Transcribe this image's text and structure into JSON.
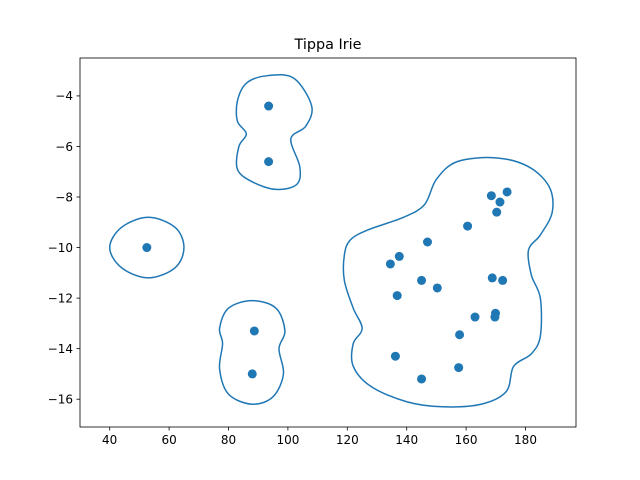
{
  "chart_data": {
    "type": "scatter",
    "title": "Tippa Irie",
    "xlabel": "",
    "ylabel": "",
    "xlim": [
      30,
      197
    ],
    "ylim": [
      -17.1,
      -2.5
    ],
    "xticks": [
      40,
      60,
      80,
      100,
      120,
      140,
      160,
      180
    ],
    "yticks": [
      -4,
      -6,
      -8,
      -10,
      -12,
      -14,
      -16
    ],
    "grid": false,
    "colors": {
      "series": "#1f77b4",
      "axes": "#000000"
    },
    "points": [
      [
        93.5,
        -4.4
      ],
      [
        93.5,
        -6.6
      ],
      [
        52.5,
        -10.0
      ],
      [
        88.7,
        -13.3
      ],
      [
        88.0,
        -15.0
      ],
      [
        168.5,
        -7.95
      ],
      [
        173.8,
        -7.8
      ],
      [
        171.4,
        -8.2
      ],
      [
        170.3,
        -8.6
      ],
      [
        160.5,
        -9.15
      ],
      [
        147.0,
        -9.78
      ],
      [
        134.5,
        -10.65
      ],
      [
        137.5,
        -10.35
      ],
      [
        145.0,
        -11.3
      ],
      [
        150.3,
        -11.6
      ],
      [
        136.8,
        -11.9
      ],
      [
        168.8,
        -11.2
      ],
      [
        172.3,
        -11.3
      ],
      [
        163.0,
        -12.75
      ],
      [
        169.9,
        -12.6
      ],
      [
        169.7,
        -12.75
      ],
      [
        157.8,
        -13.45
      ],
      [
        136.2,
        -14.3
      ],
      [
        157.5,
        -14.75
      ],
      [
        145.0,
        -15.2
      ]
    ],
    "contours": [
      [
        [
          93,
          -3.2
        ],
        [
          102,
          -3.3
        ],
        [
          108,
          -4.4
        ],
        [
          106,
          -5.2
        ],
        [
          101,
          -5.7
        ],
        [
          104,
          -6.8
        ],
        [
          103,
          -7.5
        ],
        [
          96,
          -7.7
        ],
        [
          88,
          -7.4
        ],
        [
          83,
          -6.9
        ],
        [
          83.5,
          -6.0
        ],
        [
          86,
          -5.5
        ],
        [
          83,
          -5.0
        ],
        [
          83,
          -4.2
        ],
        [
          86,
          -3.5
        ]
      ],
      [
        [
          53,
          -8.8
        ],
        [
          62,
          -9.2
        ],
        [
          65,
          -10.0
        ],
        [
          62,
          -10.8
        ],
        [
          53,
          -11.2
        ],
        [
          44,
          -10.8
        ],
        [
          40,
          -10.0
        ],
        [
          44,
          -9.2
        ]
      ],
      [
        [
          88,
          -12.1
        ],
        [
          96,
          -12.4
        ],
        [
          99,
          -13.3
        ],
        [
          97,
          -14.0
        ],
        [
          98.5,
          -15.0
        ],
        [
          95,
          -15.9
        ],
        [
          88,
          -16.2
        ],
        [
          80,
          -15.8
        ],
        [
          77,
          -14.8
        ],
        [
          78,
          -13.8
        ],
        [
          77,
          -13.2
        ],
        [
          80,
          -12.4
        ]
      ],
      [
        [
          170,
          -6.45
        ],
        [
          181,
          -6.8
        ],
        [
          188,
          -7.6
        ],
        [
          189,
          -8.6
        ],
        [
          185,
          -9.5
        ],
        [
          181,
          -10.1
        ],
        [
          182,
          -11.1
        ],
        [
          185,
          -12.0
        ],
        [
          185,
          -13.5
        ],
        [
          182,
          -14.2
        ],
        [
          176,
          -14.7
        ],
        [
          173.5,
          -15.7
        ],
        [
          165,
          -16.2
        ],
        [
          152,
          -16.3
        ],
        [
          140,
          -16.1
        ],
        [
          128,
          -15.5
        ],
        [
          122,
          -14.7
        ],
        [
          122,
          -13.8
        ],
        [
          125,
          -13.2
        ],
        [
          122,
          -12.4
        ],
        [
          119,
          -11.3
        ],
        [
          119,
          -10.3
        ],
        [
          121,
          -9.7
        ],
        [
          127,
          -9.3
        ],
        [
          139,
          -8.8
        ],
        [
          146,
          -8.3
        ],
        [
          150,
          -7.3
        ],
        [
          157,
          -6.6
        ]
      ]
    ]
  }
}
